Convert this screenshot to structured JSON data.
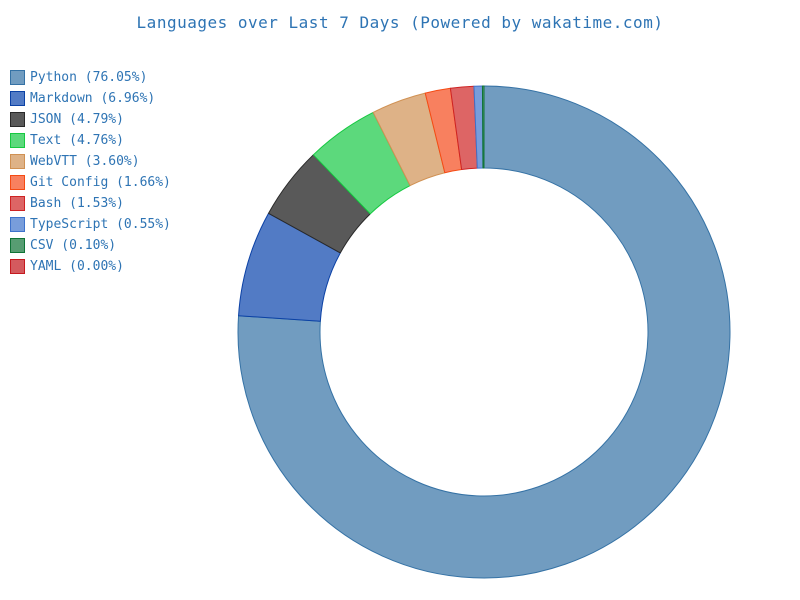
{
  "title": {
    "text": "Languages over Last 7 Days (Powered by wakatime.com)",
    "color": "#2E74B4"
  },
  "legend": {
    "position": "upper-left",
    "text_color": "#2E74B4",
    "label_format": "{label} ({value}%)"
  },
  "chart_data": {
    "type": "pie",
    "subtype": "donut",
    "title": "Languages over Last 7 Days (Powered by wakatime.com)",
    "unit": "percent",
    "start_angle_deg": 90,
    "direction": "clockwise",
    "donut_hole_ratio": 0.665,
    "background": "#ffffff",
    "series": [
      {
        "label": "Python",
        "value": 76.05,
        "fill": "#719CC0",
        "edge": "#3572A5"
      },
      {
        "label": "Markdown",
        "value": 6.96,
        "fill": "#527BC5",
        "edge": "#0B41A5"
      },
      {
        "label": "JSON",
        "value": 4.79,
        "fill": "#595959",
        "edge": "#292929"
      },
      {
        "label": "Text",
        "value": 4.76,
        "fill": "#5CD97C",
        "edge": "#16C941"
      },
      {
        "label": "WebVTT",
        "value": 3.6,
        "fill": "#DEB287",
        "edge": "#D09153"
      },
      {
        "label": "Git Config",
        "value": 1.66,
        "fill": "#F8805F",
        "edge": "#F54A13"
      },
      {
        "label": "Bash",
        "value": 1.53,
        "fill": "#DD6565",
        "edge": "#CE2323"
      },
      {
        "label": "TypeScript",
        "value": 0.55,
        "fill": "#789DDB",
        "edge": "#3E72CB"
      },
      {
        "label": "CSV",
        "value": 0.1,
        "fill": "#579D72",
        "edge": "#0F7336"
      },
      {
        "label": "YAML",
        "value": 0.0,
        "fill": "#D45A5E",
        "edge": "#C5191F"
      }
    ]
  }
}
